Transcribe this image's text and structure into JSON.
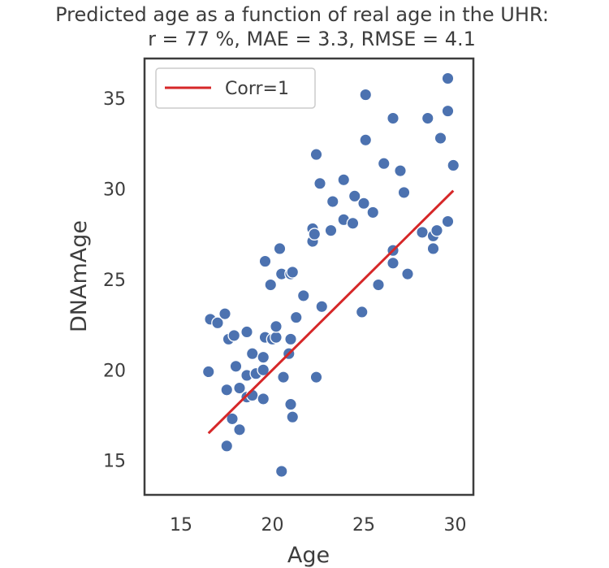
{
  "chart_data": {
    "type": "scatter",
    "title": "Predicted age as a function of real age in the UHR:",
    "subtitle": "r = 77 %, MAE = 3.3, RMSE = 4.1",
    "xlabel": "Age",
    "ylabel": "DNAmAge",
    "xlim": [
      13,
      31
    ],
    "ylim": [
      13.1,
      37.2
    ],
    "xticks": [
      15,
      20,
      25,
      30
    ],
    "yticks": [
      15,
      20,
      25,
      30,
      35
    ],
    "grid": false,
    "legend_position": "top-left",
    "series": [
      {
        "type": "scatter",
        "color": "#4c72b0",
        "points": [
          [
            16.6,
            22.8
          ],
          [
            16.5,
            19.9
          ],
          [
            17.0,
            22.6
          ],
          [
            17.4,
            23.1
          ],
          [
            17.6,
            21.7
          ],
          [
            17.5,
            18.9
          ],
          [
            17.8,
            17.3
          ],
          [
            17.5,
            15.8
          ],
          [
            17.9,
            21.9
          ],
          [
            18.0,
            20.2
          ],
          [
            18.2,
            19.0
          ],
          [
            18.2,
            16.7
          ],
          [
            18.6,
            22.1
          ],
          [
            18.6,
            19.7
          ],
          [
            18.6,
            18.5
          ],
          [
            18.9,
            18.6
          ],
          [
            18.9,
            20.9
          ],
          [
            19.1,
            19.8
          ],
          [
            19.5,
            20.7
          ],
          [
            19.5,
            20.0
          ],
          [
            19.6,
            21.8
          ],
          [
            19.5,
            18.4
          ],
          [
            19.6,
            26.0
          ],
          [
            19.9,
            24.7
          ],
          [
            20.0,
            21.7
          ],
          [
            20.2,
            21.8
          ],
          [
            20.2,
            22.4
          ],
          [
            20.4,
            26.7
          ],
          [
            20.5,
            25.3
          ],
          [
            20.6,
            19.6
          ],
          [
            20.5,
            14.4
          ],
          [
            20.9,
            20.9
          ],
          [
            21.0,
            21.7
          ],
          [
            21.0,
            25.3
          ],
          [
            21.1,
            25.4
          ],
          [
            21.0,
            18.1
          ],
          [
            21.1,
            17.4
          ],
          [
            21.3,
            22.9
          ],
          [
            21.7,
            24.1
          ],
          [
            22.2,
            27.1
          ],
          [
            22.2,
            27.8
          ],
          [
            22.3,
            27.5
          ],
          [
            22.4,
            31.9
          ],
          [
            22.4,
            19.6
          ],
          [
            22.6,
            30.3
          ],
          [
            22.7,
            23.5
          ],
          [
            23.2,
            27.7
          ],
          [
            23.3,
            29.3
          ],
          [
            23.9,
            30.5
          ],
          [
            23.9,
            28.3
          ],
          [
            24.4,
            28.1
          ],
          [
            24.5,
            29.6
          ],
          [
            24.9,
            23.2
          ],
          [
            25.0,
            29.2
          ],
          [
            25.1,
            32.7
          ],
          [
            25.1,
            35.2
          ],
          [
            25.5,
            28.7
          ],
          [
            25.8,
            24.7
          ],
          [
            26.1,
            31.4
          ],
          [
            26.6,
            33.9
          ],
          [
            26.6,
            26.6
          ],
          [
            26.6,
            25.9
          ],
          [
            27.0,
            31.0
          ],
          [
            27.2,
            29.8
          ],
          [
            27.4,
            25.3
          ],
          [
            28.2,
            27.6
          ],
          [
            28.5,
            33.9
          ],
          [
            28.8,
            26.7
          ],
          [
            28.8,
            27.4
          ],
          [
            29.0,
            27.7
          ],
          [
            29.2,
            32.8
          ],
          [
            29.6,
            28.2
          ],
          [
            29.6,
            34.3
          ],
          [
            29.6,
            36.1
          ],
          [
            29.9,
            31.3
          ]
        ]
      },
      {
        "type": "line",
        "name": "Corr=1",
        "color": "#d62728",
        "x": [
          16.5,
          29.9
        ],
        "y": [
          16.5,
          29.9
        ]
      }
    ]
  }
}
